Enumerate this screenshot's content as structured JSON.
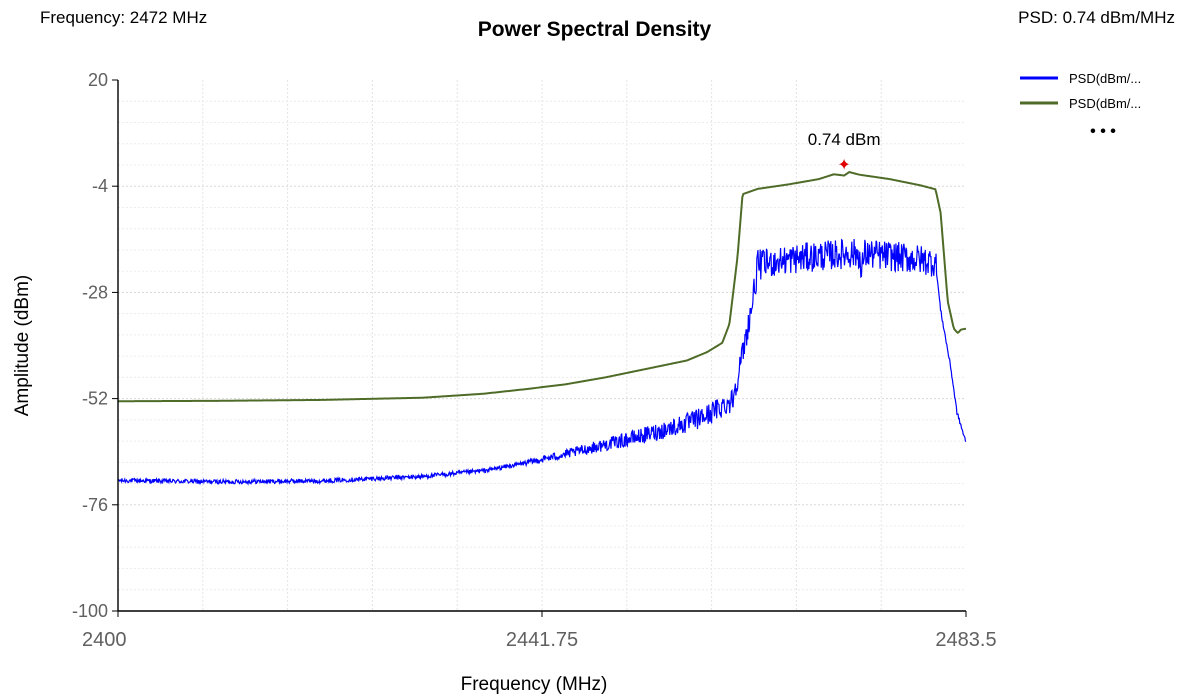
{
  "header": {
    "frequency_readout": "Frequency: 2472 MHz",
    "psd_readout": "PSD: 0.74 dBm/MHz"
  },
  "chart_data": {
    "type": "line",
    "title": "Power Spectral Density",
    "xlabel": "Frequency (MHz)",
    "ylabel": "Amplitude (dBm)",
    "xlim": [
      2400,
      2483.5
    ],
    "ylim": [
      -100,
      20
    ],
    "x_ticks": [
      2400,
      2441.75,
      2483.5
    ],
    "x_tick_labels": [
      "2400",
      "2441.75",
      "2483.5"
    ],
    "y_ticks": [
      20,
      -4,
      -28,
      -52,
      -76,
      -100
    ],
    "y_tick_labels": [
      "20",
      "-4",
      "-28",
      "-52",
      "-76",
      "-100"
    ],
    "grid": true,
    "legend_position": "top-right",
    "legend_overflow": "• • •",
    "series": [
      {
        "name": "PSD(dBm/...",
        "color": "#0000ff",
        "noisy": true,
        "points": [
          [
            2400,
            -70.5
          ],
          [
            2410,
            -70.8
          ],
          [
            2420,
            -70.6
          ],
          [
            2430,
            -69.6
          ],
          [
            2436,
            -68.3
          ],
          [
            2440,
            -66.6
          ],
          [
            2444,
            -64.6
          ],
          [
            2448,
            -62.4
          ],
          [
            2452,
            -60.2
          ],
          [
            2456,
            -57.6
          ],
          [
            2458,
            -55.8
          ],
          [
            2460.5,
            -52.3
          ],
          [
            2461.5,
            -42
          ],
          [
            2462.5,
            -30
          ],
          [
            2463,
            -21.8
          ],
          [
            2466,
            -20.6
          ],
          [
            2469,
            -19.8
          ],
          [
            2472,
            -19.2
          ],
          [
            2473,
            -19.2
          ],
          [
            2473.2,
            -25.5
          ],
          [
            2473.4,
            -19.2
          ],
          [
            2476,
            -19.8
          ],
          [
            2479,
            -20.6
          ],
          [
            2480.5,
            -21.2
          ],
          [
            2481,
            -32
          ],
          [
            2482,
            -45
          ],
          [
            2482.6,
            -55
          ],
          [
            2483.5,
            -62
          ]
        ]
      },
      {
        "name": "PSD(dBm/...",
        "color": "#4f6b28",
        "noisy": false,
        "points": [
          [
            2400,
            -52.6
          ],
          [
            2410,
            -52.5
          ],
          [
            2420,
            -52.3
          ],
          [
            2430,
            -51.8
          ],
          [
            2436,
            -50.9
          ],
          [
            2440,
            -49.9
          ],
          [
            2444,
            -48.8
          ],
          [
            2448,
            -47.2
          ],
          [
            2452,
            -45.3
          ],
          [
            2456,
            -43.4
          ],
          [
            2458,
            -41.5
          ],
          [
            2459.5,
            -39.4
          ],
          [
            2460.2,
            -35.2
          ],
          [
            2461,
            -20
          ],
          [
            2461.5,
            -5.8
          ],
          [
            2463,
            -4.6
          ],
          [
            2466,
            -3.6
          ],
          [
            2469,
            -2.4
          ],
          [
            2470.5,
            -1.3
          ],
          [
            2471.5,
            -1.6
          ],
          [
            2472,
            -0.8
          ],
          [
            2473,
            -1.4
          ],
          [
            2476,
            -2.4
          ],
          [
            2479,
            -3.8
          ],
          [
            2480.5,
            -4.7
          ],
          [
            2481,
            -10
          ],
          [
            2481.7,
            -30
          ],
          [
            2482.3,
            -36.2
          ],
          [
            2482.7,
            -37.2
          ],
          [
            2483,
            -36.4
          ],
          [
            2483.5,
            -36.2
          ]
        ]
      }
    ],
    "peak_marker": {
      "x": 2471.5,
      "y": 0.74,
      "label": "0.74 dBm",
      "color": "#e00000"
    }
  }
}
